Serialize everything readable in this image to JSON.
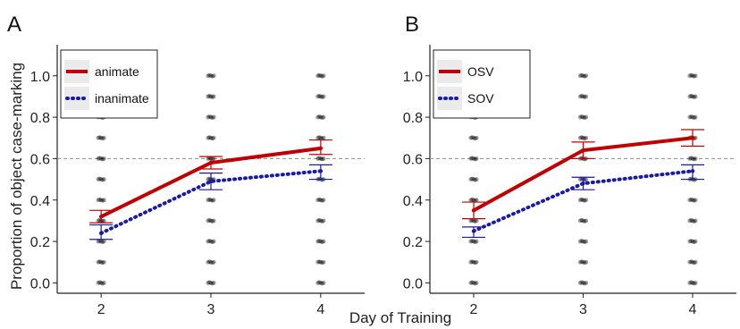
{
  "figure": {
    "xlabel": "Day of Training",
    "ylabel": "Proportion of object case-marking"
  },
  "colors": {
    "solid": "#c00000",
    "dotted": "#1a1aa8",
    "points": "#000000",
    "reference": "#9a9a9a"
  },
  "chart_data": [
    {
      "panel_label": "A",
      "type": "line",
      "categories": [
        "2",
        "3",
        "4"
      ],
      "x": [
        2,
        3,
        4
      ],
      "ylim": [
        -0.05,
        1.15
      ],
      "yticks": [
        "0.0",
        "0.2",
        "0.4",
        "0.6",
        "0.8",
        "1.0"
      ],
      "reference_line": 0.6,
      "grid": false,
      "legend_position": "top-left",
      "series": [
        {
          "name": "animate",
          "style": "solid",
          "color": "#c00000",
          "values": [
            0.32,
            0.58,
            0.65
          ],
          "error_low": [
            0.29,
            0.55,
            0.62
          ],
          "error_high": [
            0.35,
            0.61,
            0.69
          ]
        },
        {
          "name": "inanimate",
          "style": "dotted",
          "color": "#1a1aa8",
          "values": [
            0.24,
            0.49,
            0.54
          ],
          "error_low": [
            0.21,
            0.45,
            0.5
          ],
          "error_high": [
            0.28,
            0.53,
            0.57
          ]
        }
      ],
      "individual_values": [
        0.0,
        0.1,
        0.2,
        0.3,
        0.4,
        0.5,
        0.6,
        0.7,
        0.8,
        0.9,
        1.0
      ]
    },
    {
      "panel_label": "B",
      "type": "line",
      "categories": [
        "2",
        "3",
        "4"
      ],
      "x": [
        2,
        3,
        4
      ],
      "ylim": [
        -0.05,
        1.15
      ],
      "yticks": [
        "0.0",
        "0.2",
        "0.4",
        "0.6",
        "0.8",
        "1.0"
      ],
      "reference_line": 0.6,
      "grid": false,
      "legend_position": "top-left",
      "series": [
        {
          "name": "OSV",
          "style": "solid",
          "color": "#c00000",
          "values": [
            0.35,
            0.64,
            0.7
          ],
          "error_low": [
            0.31,
            0.6,
            0.66
          ],
          "error_high": [
            0.39,
            0.68,
            0.74
          ]
        },
        {
          "name": "SOV",
          "style": "dotted",
          "color": "#1a1aa8",
          "values": [
            0.25,
            0.48,
            0.54
          ],
          "error_low": [
            0.22,
            0.45,
            0.5
          ],
          "error_high": [
            0.27,
            0.51,
            0.57
          ]
        }
      ],
      "individual_values": [
        0.0,
        0.1,
        0.2,
        0.3,
        0.4,
        0.5,
        0.6,
        0.7,
        0.8,
        0.9,
        1.0
      ]
    }
  ]
}
